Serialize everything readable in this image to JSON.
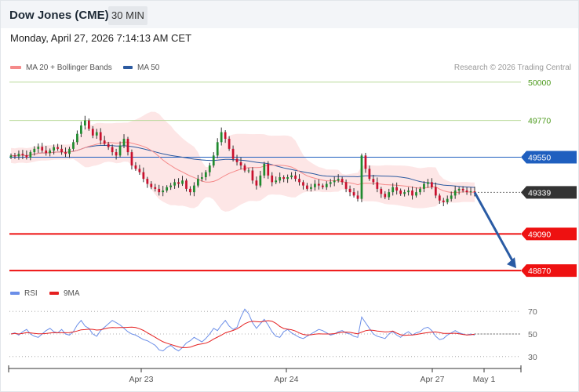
{
  "header": {
    "title": "Dow Jones (CME)",
    "timeframe": "30 MIN"
  },
  "datetime": "Monday, April 27, 2026 7:14:13 AM CET",
  "legend": {
    "ma20": "MA 20 + Bollinger Bands",
    "ma50": "MA 50",
    "credit": "Research © 2026 Trading Central",
    "rsi": "RSI",
    "rsi_ma": "9MA"
  },
  "colors": {
    "ma20": "#f58a8a",
    "ma50": "#2c5aa0",
    "band": "#fde2e2",
    "candle_up": "#1f8a2e",
    "candle_down": "#c8102e",
    "level_green": "#b9d99a",
    "level_green_text": "#4c9a1c",
    "resistance_blue": "#1f5fbf",
    "support_red": "#ee1111",
    "arrow": "#2a5ba4",
    "rsi": "#6b8ee8",
    "rsi_ma": "#e52020"
  },
  "chart_data": {
    "type": "candlestick",
    "x_ticks": [
      "Apr 23",
      "Apr 24",
      "Apr 27",
      "May 1"
    ],
    "ylim": [
      48800,
      50060
    ],
    "levels": [
      {
        "value": 50000,
        "label": "50000",
        "style": "green"
      },
      {
        "value": 49770,
        "label": "49770",
        "style": "green"
      },
      {
        "value": 49550,
        "label": "49550",
        "style": "blue"
      },
      {
        "value": 49339,
        "label": "49339",
        "style": "current"
      },
      {
        "value": 49090,
        "label": "49090",
        "style": "red"
      },
      {
        "value": 48870,
        "label": "48870",
        "style": "red"
      }
    ],
    "closes": [
      49560,
      49555,
      49570,
      49562,
      49548,
      49580,
      49600,
      49612,
      49590,
      49575,
      49590,
      49610,
      49600,
      49580,
      49570,
      49600,
      49640,
      49690,
      49740,
      49770,
      49720,
      49680,
      49700,
      49650,
      49630,
      49610,
      49580,
      49560,
      49620,
      49660,
      49580,
      49500,
      49480,
      49460,
      49420,
      49390,
      49370,
      49360,
      49340,
      49350,
      49370,
      49380,
      49400,
      49390,
      49410,
      49360,
      49340,
      49380,
      49420,
      49430,
      49460,
      49500,
      49560,
      49640,
      49700,
      49660,
      49600,
      49540,
      49520,
      49500,
      49470,
      49470,
      49410,
      49380,
      49440,
      49510,
      49440,
      49400,
      49410,
      49430,
      49420,
      49430,
      49440,
      49420,
      49400,
      49380,
      49360,
      49370,
      49390,
      49380,
      49370,
      49390,
      49400,
      49410,
      49420,
      49400,
      49360,
      49340,
      49320,
      49300,
      49560,
      49480,
      49420,
      49400,
      49360,
      49330,
      49310,
      49340,
      49370,
      49350,
      49330,
      49340,
      49350,
      49320,
      49340,
      49360,
      49390,
      49400,
      49370,
      49320,
      49290,
      49280,
      49300,
      49320,
      49350,
      49360,
      49350,
      49340,
      49345,
      49339
    ],
    "current_price": 49339,
    "forecast_target": 48870,
    "rsi": {
      "ylim": [
        25,
        75
      ],
      "ticks": [
        30,
        50,
        70
      ],
      "values": [
        50,
        51,
        49,
        52,
        54,
        50,
        48,
        47,
        50,
        53,
        55,
        52,
        51,
        54,
        50,
        49,
        52,
        58,
        62,
        57,
        55,
        50,
        48,
        53,
        56,
        59,
        62,
        60,
        58,
        55,
        52,
        50,
        49,
        47,
        45,
        44,
        42,
        40,
        36,
        35,
        38,
        40,
        37,
        35,
        38,
        42,
        44,
        47,
        45,
        43,
        46,
        50,
        55,
        53,
        58,
        62,
        57,
        54,
        56,
        65,
        72,
        68,
        60,
        55,
        59,
        63,
        58,
        52,
        48,
        47,
        52,
        54,
        51,
        49,
        47,
        46,
        48,
        50,
        52,
        54,
        53,
        51,
        49,
        50,
        52,
        53,
        51,
        50,
        48,
        47,
        65,
        60,
        55,
        50,
        48,
        47,
        46,
        50,
        52,
        49,
        47,
        50,
        52,
        49,
        51,
        52,
        55,
        56,
        53,
        48,
        45,
        46,
        49,
        51,
        53,
        51,
        50,
        49,
        50,
        49
      ]
    }
  }
}
